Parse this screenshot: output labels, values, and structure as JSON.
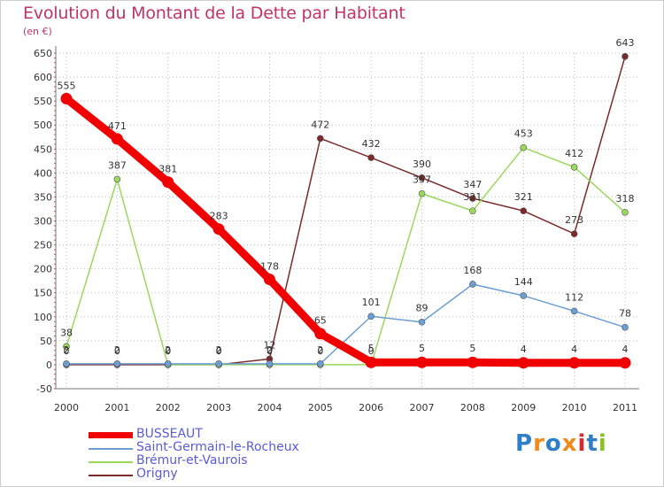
{
  "title": "Evolution du Montant de la Dette par Habitant",
  "unit": "(en €)",
  "logo": {
    "text": "Proxiti",
    "colors": [
      "#2f7fc8",
      "#f08a1c",
      "#2f7fc8",
      "#f08a1c",
      "#d62b2b",
      "#2f7fc8",
      "#8cbf26"
    ]
  },
  "chart_data": {
    "type": "line",
    "x": [
      "2000",
      "2001",
      "2002",
      "2003",
      "2004",
      "2005",
      "2006",
      "2007",
      "2008",
      "2009",
      "2010",
      "2011"
    ],
    "ylim": [
      -50,
      650
    ],
    "yticks": [
      -50,
      0,
      50,
      100,
      150,
      200,
      250,
      300,
      350,
      400,
      450,
      500,
      550,
      600,
      650
    ],
    "grid": true,
    "legend_position": "bottom-left",
    "series": [
      {
        "name": "BUSSEAUT",
        "color": "#f00000",
        "values": [
          555,
          471,
          381,
          283,
          178,
          65,
          5,
          5,
          5,
          4,
          4,
          4
        ]
      },
      {
        "name": "Saint-Germain-le-Rocheux",
        "color": "#6b9fd4",
        "values": [
          2,
          2,
          2,
          2,
          2,
          2,
          101,
          89,
          168,
          144,
          112,
          78
        ]
      },
      {
        "name": "Brémur-et-Vaurois",
        "color": "#99d95a",
        "values": [
          38,
          387,
          0,
          0,
          0,
          0,
          0,
          357,
          321,
          453,
          412,
          318
        ]
      },
      {
        "name": "Origny",
        "color": "#7a2a2a",
        "values": [
          0,
          0,
          0,
          0,
          12,
          472,
          432,
          390,
          347,
          321,
          273,
          643
        ]
      }
    ]
  }
}
